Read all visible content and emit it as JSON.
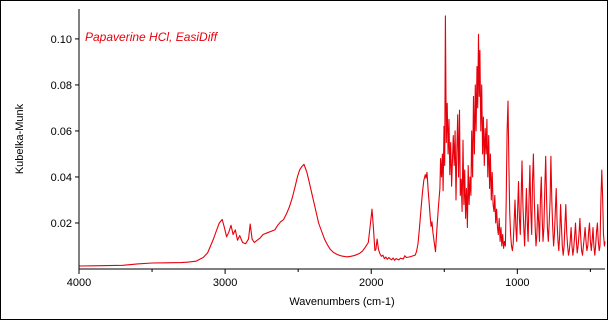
{
  "chart_data": {
    "type": "line",
    "title": "Papaverine HCl, EasiDiff",
    "xlabel": "Wavenumbers (cm-1)",
    "ylabel": "Kubelka-Munk",
    "xlim": [
      4000,
      400
    ],
    "ylim": [
      0.0,
      0.113
    ],
    "x_reversed": true,
    "grid": false,
    "x_ticks": [
      4000,
      3000,
      2000,
      1000
    ],
    "x_tick_labels": [
      "4000",
      "3000",
      "2000",
      "1000"
    ],
    "y_ticks": [
      0.02,
      0.04,
      0.06,
      0.08,
      0.1
    ],
    "y_tick_labels": [
      "0.02",
      "0.04",
      "0.06",
      "0.08",
      "0.10"
    ],
    "series": [
      {
        "color": "#e8000b",
        "x": [
          4000,
          3900,
          3700,
          3600,
          3500,
          3400,
          3300,
          3250,
          3200,
          3150,
          3120,
          3100,
          3080,
          3060,
          3040,
          3020,
          3005,
          2990,
          2975,
          2960,
          2945,
          2930,
          2915,
          2900,
          2880,
          2860,
          2840,
          2828,
          2815,
          2800,
          2780,
          2760,
          2740,
          2720,
          2700,
          2680,
          2660,
          2640,
          2620,
          2600,
          2580,
          2560,
          2540,
          2520,
          2505,
          2490,
          2475,
          2460,
          2440,
          2420,
          2400,
          2380,
          2360,
          2340,
          2320,
          2300,
          2280,
          2260,
          2240,
          2220,
          2200,
          2180,
          2160,
          2140,
          2120,
          2100,
          2080,
          2060,
          2040,
          2020,
          2005,
          1995,
          1985,
          1975,
          1968,
          1960,
          1950,
          1940,
          1930,
          1920,
          1910,
          1900,
          1890,
          1880,
          1870,
          1860,
          1850,
          1840,
          1830,
          1820,
          1810,
          1800,
          1790,
          1780,
          1770,
          1760,
          1740,
          1720,
          1700,
          1690,
          1680,
          1670,
          1660,
          1650,
          1640,
          1630,
          1625,
          1618,
          1610,
          1603,
          1596,
          1590,
          1584,
          1578,
          1570,
          1560,
          1550,
          1540,
          1530,
          1525,
          1519,
          1513,
          1508,
          1502,
          1497,
          1492,
          1486,
          1480,
          1474,
          1468,
          1462,
          1456,
          1450,
          1444,
          1438,
          1432,
          1426,
          1420,
          1414,
          1408,
          1402,
          1396,
          1390,
          1384,
          1378,
          1372,
          1366,
          1360,
          1354,
          1348,
          1342,
          1336,
          1330,
          1324,
          1318,
          1312,
          1306,
          1300,
          1294,
          1288,
          1282,
          1276,
          1271,
          1266,
          1261,
          1256,
          1250,
          1244,
          1238,
          1232,
          1226,
          1220,
          1214,
          1208,
          1202,
          1196,
          1190,
          1184,
          1178,
          1172,
          1166,
          1160,
          1154,
          1148,
          1142,
          1136,
          1130,
          1124,
          1118,
          1112,
          1106,
          1100,
          1094,
          1088,
          1082,
          1076,
          1070,
          1064,
          1058,
          1052,
          1046,
          1040,
          1034,
          1028,
          1022,
          1016,
          1010,
          1004,
          998,
          992,
          986,
          980,
          974,
          968,
          962,
          956,
          950,
          944,
          938,
          932,
          926,
          920,
          914,
          908,
          902,
          896,
          890,
          884,
          878,
          872,
          866,
          860,
          854,
          848,
          842,
          836,
          830,
          824,
          818,
          812,
          806,
          800,
          794,
          788,
          782,
          776,
          770,
          764,
          758,
          752,
          746,
          740,
          734,
          728,
          722,
          716,
          710,
          704,
          698,
          692,
          686,
          680,
          674,
          668,
          662,
          656,
          650,
          644,
          638,
          632,
          626,
          620,
          614,
          608,
          602,
          596,
          590,
          584,
          578,
          572,
          566,
          560,
          554,
          548,
          542,
          536,
          530,
          524,
          518,
          512,
          506,
          500,
          494,
          488,
          482,
          476,
          470,
          464,
          458,
          452,
          446,
          440,
          434,
          428,
          422,
          416,
          410,
          404,
          400
        ],
        "y": [
          0.0013,
          0.0014,
          0.0016,
          0.0022,
          0.0026,
          0.0027,
          0.0028,
          0.003,
          0.0034,
          0.005,
          0.007,
          0.01,
          0.013,
          0.0165,
          0.02,
          0.0215,
          0.018,
          0.014,
          0.016,
          0.019,
          0.015,
          0.017,
          0.0125,
          0.0145,
          0.0115,
          0.011,
          0.013,
          0.0195,
          0.013,
          0.0115,
          0.0125,
          0.0135,
          0.015,
          0.0155,
          0.016,
          0.0165,
          0.017,
          0.019,
          0.0205,
          0.0215,
          0.024,
          0.027,
          0.031,
          0.036,
          0.04,
          0.043,
          0.0445,
          0.0455,
          0.042,
          0.0365,
          0.031,
          0.0255,
          0.02,
          0.0165,
          0.013,
          0.0105,
          0.0085,
          0.0073,
          0.0065,
          0.006,
          0.0056,
          0.0054,
          0.0053,
          0.0055,
          0.0058,
          0.0062,
          0.0068,
          0.0078,
          0.0095,
          0.0115,
          0.02,
          0.026,
          0.018,
          0.008,
          0.0085,
          0.013,
          0.0085,
          0.0065,
          0.0055,
          0.006,
          0.0045,
          0.0052,
          0.0042,
          0.005,
          0.0044,
          0.004,
          0.0048,
          0.0038,
          0.0045,
          0.0042,
          0.004,
          0.0047,
          0.0045,
          0.0044,
          0.0058,
          0.005,
          0.0052,
          0.0056,
          0.006,
          0.0075,
          0.011,
          0.0175,
          0.0255,
          0.033,
          0.0385,
          0.041,
          0.0395,
          0.042,
          0.034,
          0.0285,
          0.022,
          0.0185,
          0.0205,
          0.016,
          0.012,
          0.0075,
          0.018,
          0.027,
          0.035,
          0.048,
          0.04,
          0.05,
          0.034,
          0.062,
          0.045,
          0.11,
          0.055,
          0.072,
          0.05,
          0.065,
          0.041,
          0.055,
          0.036,
          0.048,
          0.058,
          0.045,
          0.06,
          0.03,
          0.05,
          0.067,
          0.04,
          0.069,
          0.032,
          0.039,
          0.025,
          0.056,
          0.028,
          0.043,
          0.022,
          0.035,
          0.018,
          0.045,
          0.028,
          0.04,
          0.032,
          0.06,
          0.04,
          0.075,
          0.05,
          0.08,
          0.06,
          0.088,
          0.07,
          0.102,
          0.075,
          0.095,
          0.06,
          0.08,
          0.05,
          0.066,
          0.045,
          0.061,
          0.05,
          0.065,
          0.04,
          0.058,
          0.035,
          0.05,
          0.03,
          0.042,
          0.028,
          0.025,
          0.032,
          0.02,
          0.026,
          0.018,
          0.015,
          0.022,
          0.012,
          0.018,
          0.01,
          0.015,
          0.009,
          0.012,
          0.01,
          0.03,
          0.06,
          0.073,
          0.045,
          0.025,
          0.015,
          0.01,
          0.008,
          0.011,
          0.02,
          0.03,
          0.018,
          0.012,
          0.025,
          0.038,
          0.022,
          0.015,
          0.03,
          0.047,
          0.028,
          0.018,
          0.01,
          0.022,
          0.035,
          0.02,
          0.012,
          0.03,
          0.045,
          0.025,
          0.015,
          0.038,
          0.05,
          0.03,
          0.018,
          0.01,
          0.015,
          0.028,
          0.02,
          0.012,
          0.03,
          0.04,
          0.022,
          0.012,
          0.018,
          0.035,
          0.049,
          0.03,
          0.018,
          0.012,
          0.02,
          0.03,
          0.049,
          0.03,
          0.018,
          0.01,
          0.015,
          0.025,
          0.035,
          0.02,
          0.012,
          0.008,
          0.015,
          0.028,
          0.018,
          0.01,
          0.006,
          0.01,
          0.02,
          0.028,
          0.016,
          0.01,
          0.006,
          0.008,
          0.012,
          0.018,
          0.01,
          0.006,
          0.009,
          0.014,
          0.02,
          0.012,
          0.007,
          0.01,
          0.015,
          0.022,
          0.014,
          0.008,
          0.006,
          0.01,
          0.014,
          0.018,
          0.012,
          0.008,
          0.01,
          0.016,
          0.02,
          0.012,
          0.008,
          0.012,
          0.018,
          0.01,
          0.006,
          0.01,
          0.016,
          0.02,
          0.012,
          0.008,
          0.01,
          0.03,
          0.043,
          0.03,
          0.015,
          0.01,
          0.012
        ]
      }
    ]
  }
}
